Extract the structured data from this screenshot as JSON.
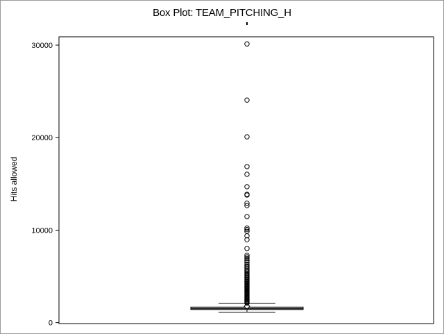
{
  "chart_data": {
    "type": "box",
    "title": "Box Plot: TEAM_PITCHING_H",
    "xlabel": "",
    "ylabel": "Hits allowed",
    "ylim": [
      -100,
      30900
    ],
    "yticks": [
      0,
      10000,
      20000,
      30000
    ],
    "ytick_labels": [
      "0",
      "10000",
      "20000",
      "30000"
    ],
    "box": {
      "whisker_low": 1137,
      "q1": 1419,
      "median": 1518,
      "q3": 1682,
      "whisker_high": 2080,
      "mean": 1779
    },
    "outliers": [
      30132,
      24057,
      20088,
      16871,
      16038,
      14694,
      13874,
      13791,
      12917,
      12658,
      11472,
      10231,
      10056,
      9861,
      9381,
      8970,
      8019,
      7289,
      7104,
      6907,
      6712,
      6523,
      6308,
      6128,
      5987,
      5812,
      5644,
      5498,
      5361,
      5244,
      5119,
      5008,
      4896,
      4785,
      4672,
      4560,
      4451,
      4344,
      4238,
      4130,
      4024,
      3918,
      3812,
      3708,
      3604,
      3501,
      3398,
      3296,
      3194,
      3093,
      2992,
      2891,
      2791,
      2691,
      2592,
      2494,
      2396,
      2298,
      2201,
      2110
    ]
  }
}
